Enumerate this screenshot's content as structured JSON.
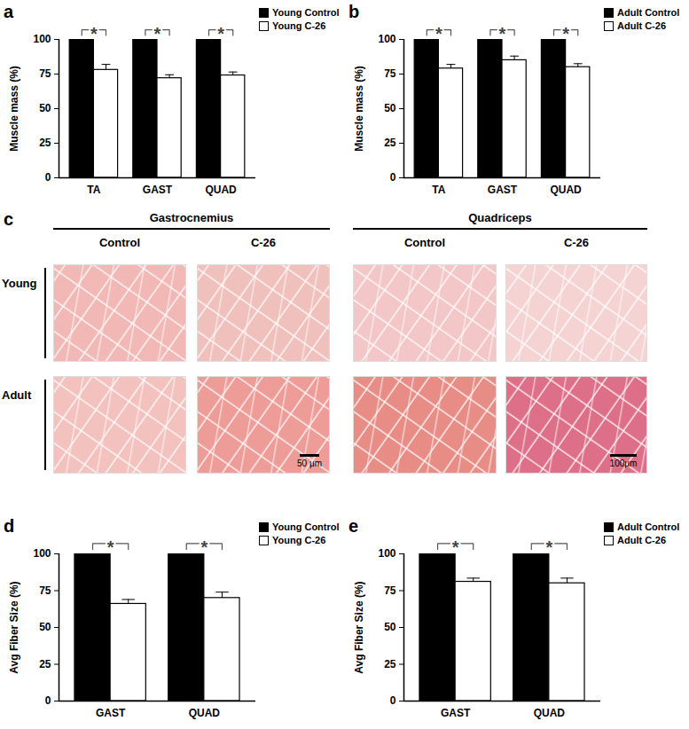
{
  "chart_data": [
    {
      "type": "bar",
      "title": "a",
      "ylabel": "Muscle mass (%)",
      "categories": [
        "TA",
        "GAST",
        "QUAD"
      ],
      "ylim": [
        0,
        100
      ],
      "yticks": [
        0,
        25,
        50,
        75,
        100
      ],
      "legend": "top-right",
      "series": [
        {
          "name": "Young Control",
          "color": "#000000",
          "values": [
            100,
            100,
            100
          ]
        },
        {
          "name": "Young C-26",
          "color": "#ffffff",
          "values": [
            78,
            72,
            74
          ],
          "errors": [
            4,
            2.5,
            2.5
          ]
        }
      ],
      "annotations": [
        {
          "category": "TA",
          "text": "*"
        },
        {
          "category": "GAST",
          "text": "*"
        },
        {
          "category": "QUAD",
          "text": "*"
        }
      ]
    },
    {
      "type": "bar",
      "title": "b",
      "ylabel": "Muscle mass (%)",
      "categories": [
        "TA",
        "GAST",
        "QUAD"
      ],
      "ylim": [
        0,
        100
      ],
      "yticks": [
        0,
        25,
        50,
        75,
        100
      ],
      "legend": "top-right",
      "series": [
        {
          "name": "Adult Control",
          "color": "#000000",
          "values": [
            100,
            100,
            100
          ]
        },
        {
          "name": "Adult C-26",
          "color": "#ffffff",
          "values": [
            79,
            85,
            80
          ],
          "errors": [
            3,
            3,
            2.5
          ]
        }
      ],
      "annotations": [
        {
          "category": "TA",
          "text": "*"
        },
        {
          "category": "GAST",
          "text": "*"
        },
        {
          "category": "QUAD",
          "text": "*"
        }
      ]
    },
    {
      "type": "bar",
      "title": "d",
      "ylabel": "Avg Fiber Size (%)",
      "categories": [
        "GAST",
        "QUAD"
      ],
      "ylim": [
        0,
        100
      ],
      "yticks": [
        0,
        25,
        50,
        75,
        100
      ],
      "legend": "top-right",
      "series": [
        {
          "name": "Young Control",
          "color": "#000000",
          "values": [
            100,
            100
          ]
        },
        {
          "name": "Young C-26",
          "color": "#ffffff",
          "values": [
            66,
            70
          ],
          "errors": [
            3,
            4
          ]
        }
      ],
      "annotations": [
        {
          "category": "GAST",
          "text": "*"
        },
        {
          "category": "QUAD",
          "text": "*"
        }
      ]
    },
    {
      "type": "bar",
      "title": "e",
      "ylabel": "Avg Fiber Size (%)",
      "categories": [
        "GAST",
        "QUAD"
      ],
      "ylim": [
        0,
        100
      ],
      "yticks": [
        0,
        25,
        50,
        75,
        100
      ],
      "legend": "top-right",
      "series": [
        {
          "name": "Adult Control",
          "color": "#000000",
          "values": [
            100,
            100
          ]
        },
        {
          "name": "Adult C-26",
          "color": "#ffffff",
          "values": [
            81,
            80
          ],
          "errors": [
            2.5,
            3.5
          ]
        }
      ],
      "annotations": [
        {
          "category": "GAST",
          "text": "*"
        },
        {
          "category": "QUAD",
          "text": "*"
        }
      ]
    }
  ],
  "image_panel": {
    "title": "c",
    "columns": [
      {
        "muscle": "Gastrocnemius",
        "conditions": [
          "Control",
          "C-26"
        ]
      },
      {
        "muscle": "Quadriceps",
        "conditions": [
          "Control",
          "C-26"
        ]
      }
    ],
    "rows": [
      "Young",
      "Adult"
    ],
    "scale_bars": [
      {
        "muscle": "Gastrocnemius",
        "label": "50 μm"
      },
      {
        "muscle": "Quadriceps",
        "label": "100μm"
      }
    ]
  }
}
